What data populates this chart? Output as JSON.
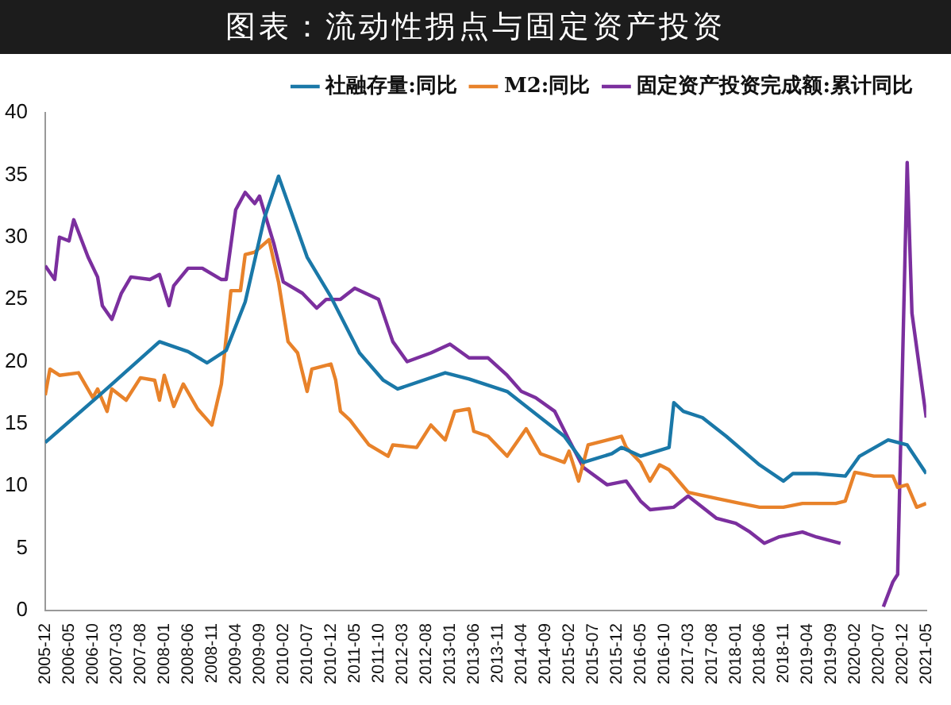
{
  "chart_data": {
    "type": "line",
    "title": "图表：流动性拐点与固定资产投资",
    "legend": "top",
    "grid": false,
    "marker": "none",
    "line_style": "solid",
    "xlim": [
      "2005-12",
      "2021-05"
    ],
    "xticks": [
      "2005-12",
      "2006-05",
      "2006-10",
      "2007-03",
      "2007-08",
      "2008-01",
      "2008-06",
      "2008-11",
      "2009-04",
      "2009-09",
      "2010-02",
      "2010-07",
      "2010-12",
      "2011-05",
      "2011-10",
      "2012-03",
      "2012-08",
      "2013-01",
      "2013-06",
      "2013-11",
      "2014-04",
      "2014-09",
      "2015-02",
      "2015-07",
      "2015-12",
      "2016-05",
      "2016-10",
      "2017-03",
      "2017-08",
      "2018-01",
      "2018-06",
      "2018-11",
      "2019-04",
      "2019-09",
      "2020-02",
      "2020-07",
      "2020-12",
      "2021-05"
    ],
    "ylim": [
      0,
      40
    ],
    "yticks": [
      0,
      5,
      10,
      15,
      20,
      25,
      30,
      35,
      40
    ],
    "series": [
      {
        "name": "社融存量:同比",
        "color": "#1a78a8",
        "x": [
          "2005-12",
          "2006-12",
          "2007-12",
          "2008-06",
          "2008-10",
          "2009-02",
          "2009-06",
          "2009-10",
          "2010-01",
          "2010-07",
          "2010-12",
          "2011-06",
          "2011-11",
          "2012-02",
          "2012-12",
          "2013-05",
          "2014-01",
          "2015-01",
          "2015-05",
          "2015-11",
          "2016-01",
          "2016-05",
          "2016-11",
          "2016-12",
          "2017-02",
          "2017-06",
          "2017-11",
          "2018-06",
          "2018-11",
          "2019-01",
          "2019-06",
          "2019-12",
          "2020-03",
          "2020-09",
          "2021-01",
          "2021-05"
        ],
        "values": [
          13.5,
          17.5,
          21.6,
          20.8,
          19.9,
          20.9,
          24.8,
          31.5,
          34.9,
          28.4,
          25.2,
          20.7,
          18.5,
          17.8,
          19.1,
          18.6,
          17.6,
          14.0,
          11.9,
          12.6,
          13.1,
          12.4,
          13.1,
          16.7,
          16.0,
          15.5,
          14.0,
          11.7,
          10.4,
          11.0,
          11.0,
          10.8,
          12.4,
          13.7,
          13.3,
          11.0
        ]
      },
      {
        "name": "M2:同比",
        "color": "#e8822a",
        "x": [
          "2005-12",
          "2006-01",
          "2006-03",
          "2006-07",
          "2006-10",
          "2006-11",
          "2007-01",
          "2007-02",
          "2007-05",
          "2007-08",
          "2007-11",
          "2007-12",
          "2008-01",
          "2008-03",
          "2008-05",
          "2008-08",
          "2008-11",
          "2009-01",
          "2009-03",
          "2009-05",
          "2009-06",
          "2009-08",
          "2009-11",
          "2010-01",
          "2010-03",
          "2010-05",
          "2010-07",
          "2010-08",
          "2010-12",
          "2011-01",
          "2011-02",
          "2011-04",
          "2011-08",
          "2011-12",
          "2012-01",
          "2012-06",
          "2012-09",
          "2012-12",
          "2013-02",
          "2013-05",
          "2013-06",
          "2013-09",
          "2014-01",
          "2014-05",
          "2014-08",
          "2015-01",
          "2015-02",
          "2015-04",
          "2015-06",
          "2016-01",
          "2016-02",
          "2016-05",
          "2016-07",
          "2016-09",
          "2016-11",
          "2017-03",
          "2017-09",
          "2018-02",
          "2018-06",
          "2018-11",
          "2019-03",
          "2019-10",
          "2019-12",
          "2020-02",
          "2020-06",
          "2020-10",
          "2020-11",
          "2021-01",
          "2021-03",
          "2021-05"
        ],
        "values": [
          17.3,
          19.4,
          18.9,
          19.1,
          17.1,
          17.8,
          16.0,
          17.8,
          16.9,
          18.7,
          18.5,
          16.9,
          18.9,
          16.4,
          18.2,
          16.2,
          14.9,
          18.2,
          25.7,
          25.7,
          28.6,
          28.8,
          29.8,
          26.4,
          21.6,
          20.7,
          17.6,
          19.4,
          19.8,
          18.5,
          16.0,
          15.3,
          13.3,
          12.4,
          13.3,
          13.1,
          14.9,
          13.7,
          16.0,
          16.2,
          14.4,
          14.0,
          12.4,
          14.6,
          12.6,
          11.9,
          12.8,
          10.4,
          13.3,
          14.0,
          13.1,
          11.9,
          10.4,
          11.7,
          11.3,
          9.5,
          9.0,
          8.6,
          8.3,
          8.3,
          8.6,
          8.6,
          8.8,
          11.1,
          10.8,
          10.8,
          9.9,
          10.1,
          8.3,
          8.6
        ]
      },
      {
        "name": "固定资产投资完成额:累计同比",
        "color": "#7b2f9e",
        "x": [
          "2005-12",
          "2006-02",
          "2006-03",
          "2006-05",
          "2006-06",
          "2006-09",
          "2006-11",
          "2006-12",
          "2007-02",
          "2007-04",
          "2007-06",
          "2007-10",
          "2007-12",
          "2008-02",
          "2008-03",
          "2008-06",
          "2008-09",
          "2009-01",
          "2009-02",
          "2009-04",
          "2009-06",
          "2009-08",
          "2009-09",
          "2009-12",
          "2010-02",
          "2010-06",
          "2010-09",
          "2010-11",
          "2011-02",
          "2011-05",
          "2011-10",
          "2012-01",
          "2012-04",
          "2012-09",
          "2013-01",
          "2013-05",
          "2013-09",
          "2014-01",
          "2014-04",
          "2014-07",
          "2014-11",
          "2015-02",
          "2015-05",
          "2015-10",
          "2016-02",
          "2016-05",
          "2016-07",
          "2016-12",
          "2017-03",
          "2017-09",
          "2018-01",
          "2018-04",
          "2018-07",
          "2018-10",
          "2019-03",
          "2019-06",
          "2019-11",
          "2019-12",
          "2020-08",
          "2020-10",
          "2020-11",
          "2021-01",
          "2021-02",
          "2021-05"
        ],
        "values": [
          27.7,
          26.6,
          30.0,
          29.7,
          31.4,
          28.4,
          26.8,
          24.5,
          23.4,
          25.5,
          26.8,
          26.6,
          27.0,
          24.5,
          26.1,
          27.5,
          27.5,
          26.6,
          26.6,
          32.2,
          33.6,
          32.7,
          33.3,
          29.5,
          26.4,
          25.5,
          24.3,
          25.0,
          25.0,
          25.9,
          25.0,
          21.6,
          20.0,
          20.7,
          21.4,
          20.3,
          20.3,
          18.9,
          17.6,
          17.1,
          16.0,
          13.7,
          11.5,
          10.1,
          10.4,
          8.8,
          8.1,
          8.3,
          9.2,
          7.4,
          7.0,
          6.3,
          5.4,
          5.9,
          6.3,
          5.9,
          5.4,
          null,
          0.3,
          2.3,
          2.9,
          36.0,
          23.9,
          15.5
        ]
      }
    ]
  }
}
